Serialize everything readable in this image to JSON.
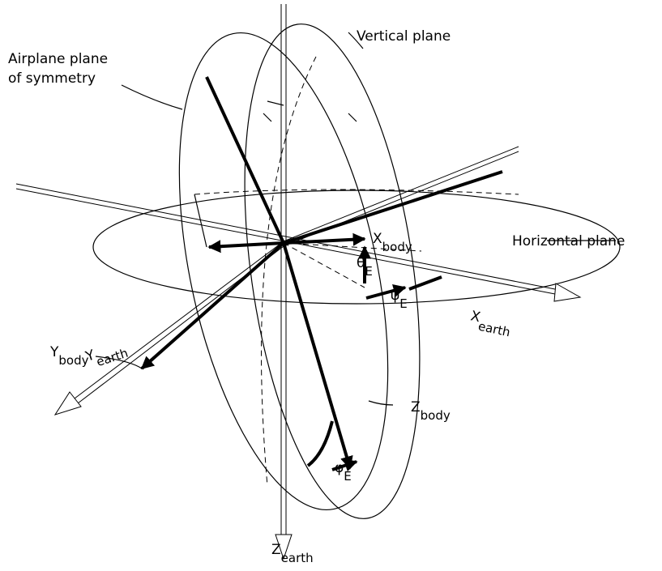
{
  "labels": {
    "vertical_plane": "Vertical plane",
    "symmetry_plane": [
      "Airplane plane",
      "of symmetry"
    ],
    "horizontal_plane": "Horizontal plane",
    "axes": [
      {
        "main": "X",
        "sub": "body"
      },
      {
        "main": "Y",
        "sub": "body"
      },
      {
        "main": "Z",
        "sub": "body"
      },
      {
        "main": "X",
        "sub": "earth"
      },
      {
        "main": "Y",
        "sub": "earth"
      },
      {
        "main": "Z",
        "sub": "earth"
      }
    ],
    "angles": [
      {
        "main": "θ",
        "sub": "E"
      },
      {
        "main": "ψ",
        "sub": "E"
      },
      {
        "main": "φ",
        "sub": "E"
      }
    ]
  }
}
